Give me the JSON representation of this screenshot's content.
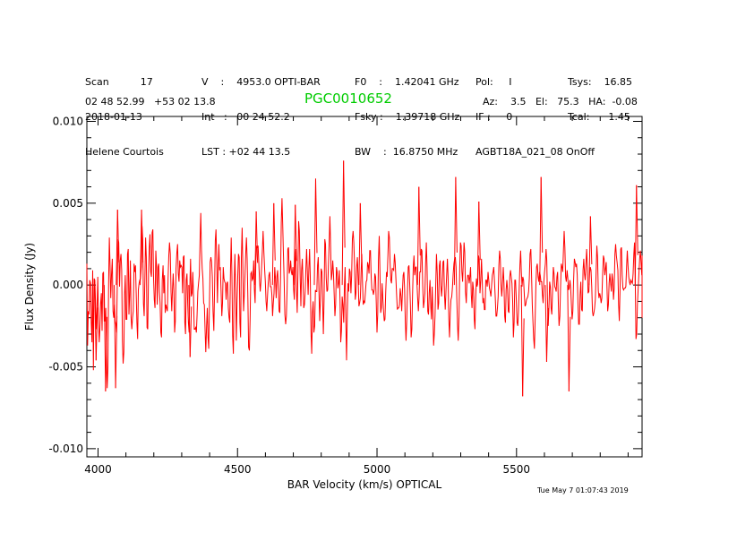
{
  "header": {
    "col1": [
      "Scan          17",
      "2018-01-13",
      "Helene Courtois"
    ],
    "col2": [
      "V    :    4953.0 OPTI-BAR",
      "Int   :   00 24 52.2",
      "LST : +02 44 13.5"
    ],
    "col3": [
      "F0    :    1.42041 GHz",
      "Fsky :    1.39718 GHz",
      "BW    :  16.8750 MHz"
    ],
    "col4": [
      "Pol:     I",
      "IF :     0",
      "AGBT18A_021_08 OnOff"
    ],
    "col5": [
      "Tsys:    16.85",
      "Tcal:      1.45",
      ""
    ],
    "coords": "02 48 52.99   +53 02 13.8",
    "object": "PGC0010652",
    "pointing": "Az:    3.5   El:   75.3   HA:  -0.08",
    "timestamp": "Tue May  7 01:07:43 2019"
  },
  "chart_data": {
    "type": "line",
    "xlabel": "BAR Velocity (km/s) OPTICAL",
    "ylabel": "Flux Density (Jy)",
    "xlim": [
      3960,
      5950
    ],
    "ylim": [
      -0.0105,
      0.0103
    ],
    "xticks": [
      4000,
      4500,
      5000,
      5500
    ],
    "xtick_labels": [
      "4000",
      "4500",
      "5000",
      "5500"
    ],
    "yticks": [
      0.01,
      0.005,
      0.0,
      -0.005,
      -0.01
    ],
    "ytick_labels": [
      "0.010",
      "0.005",
      "0.000",
      "-0.005",
      "-0.010"
    ],
    "series": [
      {
        "color": "#ff0000",
        "x_start": 3960,
        "x_step": 2.6,
        "values": [
          0.0013,
          -0.0037,
          -0.0016,
          -0.0018,
          0.0003,
          0.0001,
          -0.0023,
          -0.0035,
          0.0009,
          -0.0052,
          0.0004,
          0.0003,
          -0.0011,
          -0.0027,
          -0.0016,
          0.0005,
          -0.0023,
          -0.0035,
          -0.0026,
          -0.0011,
          -0.0005,
          -0.0028,
          0.0007,
          0.0008,
          -0.0022,
          -0.0022,
          -0.0014,
          -0.0043,
          -0.0063,
          -0.0051,
          0.0001,
          0.0029,
          0.0012,
          -0.0008,
          0.0006,
          0.0016,
          -0.0016,
          -0.002,
          -0.0012,
          -0.0022,
          -0.0024,
          -0.0029,
          0.0002,
          0.0028,
          0.0026,
          -0.0001,
          0.0015,
          0.0019,
          0.0009,
          -0.0034,
          -0.0048,
          -0.0041,
          -0.0006,
          0.0006,
          -0.0021,
          -0.0021,
          0.0019,
          0.0022,
          -0.0018,
          -0.0006,
          0.0015,
          -0.002,
          -0.0027,
          -0.002,
          -0.0016,
          0.0013,
          0.0008,
          0.0012,
          -0.0005,
          -0.0023,
          -0.0033,
          -0.0003,
          0.0001,
          0.0003,
          0.0004,
          0.0011,
          0.0036,
          0.0028,
          -0.0011,
          -0.0019,
          0.0003,
          0.0029,
          0.0017,
          -0.0026,
          -0.0027,
          0.0008,
          0.0023,
          0.0031,
          0.0008,
          0.0005,
          0.0032,
          0.0034,
          0.0004,
          -0.0009,
          -0.0014,
          0.0021,
          0.0011,
          -0.0012,
          0.0011,
          0.0013,
          -0.0004,
          -0.0011,
          -0.0029,
          -0.0032,
          0.0003,
          0.0012,
          -0.0005,
          0.0006,
          -0.0017,
          -0.0012,
          -0.0014,
          -0.0016,
          0.0004,
          0.0018,
          0.0026,
          0.0019,
          -0.0004,
          -0.0016,
          -0.0003,
          0.0007,
          -0.0004,
          -0.0029,
          -0.0022,
          0.001,
          0.0019,
          0.0025,
          0.0007,
          0.0002,
          0.0015,
          0.0011,
          0.0012,
          0.0011,
          -0.0005,
          0.0017,
          0.0018,
          -0.0023,
          -0.003,
          0.0003,
          0.0007,
          -0.0011,
          -0.0023,
          -0.0029,
          -0.0001,
          0.0016,
          -0.0007,
          -0.0005,
          0.0008,
          -0.0007,
          -0.0027,
          -0.0027,
          -0.0026,
          -0.0029,
          -0.0018,
          -0.0004,
          0.0001,
          0.0006,
          0.0027,
          0.0044,
          0.0021,
          0.001,
          0.0004,
          -0.0011,
          -0.0012,
          -0.0027,
          -0.0041,
          -0.0025,
          -0.0014,
          -0.0032,
          -0.0039,
          -0.0011,
          0.0014,
          0.0017,
          0.0014,
          0.0005,
          -0.0016,
          -0.0028,
          -0.0003,
          0.0027,
          0.0034,
          0.0015,
          -0.0011,
          0.001,
          0.0025,
          0.0009,
          0.0011,
          -0.0004,
          -0.0019,
          -0.0011,
          0.0011,
          0.0004,
          0.0002,
          0.0001,
          -0.0009,
          0.0001,
          0.0002,
          -0.0014,
          -0.002,
          -0.0023,
          0.0009,
          0.0029,
          0.0005,
          -0.0031,
          -0.0042,
          -0.0003,
          0.0019,
          -0.0002,
          -0.0034,
          -0.0011,
          0.0005,
          0.0019,
          0.0017,
          -0.0023,
          -0.0032,
          0.0016,
          0.0035,
          0.0011,
          -0.0016,
          -0.0006,
          0.0006,
          0.0019,
          0.0029,
          0.0016,
          -0.0008,
          -0.0038,
          -0.004,
          -0.0021,
          0.0007,
          0.0008,
          0.0003,
          0.0004,
          0.0015,
          -0.0003,
          -0.0011,
          0.0015,
          0.0024,
          0.0023,
          0.0024,
          0.0014,
          0.0003,
          -0.0004,
          0.0002,
          0.0012,
          0.0021,
          0.0033,
          0.002,
          0.001,
          0.0002,
          -0.001,
          -0.0016,
          -0.0007,
          0.0001,
          0.0006,
          0.0008,
          -0.0001,
          -0.0001,
          -0.0006,
          -0.0019,
          -0.0011,
          -0.0005,
          0.0011,
          0.0004,
          -0.0008,
          0.0005,
          0.0009,
          -0.0003,
          -0.0016,
          -0.0017,
          0.0005,
          0.0038,
          0.0053,
          0.0037,
          0.0019,
          0.0003,
          -0.0018,
          -0.0024,
          -0.0019,
          -0.0003,
          0.0022,
          0.0023,
          0.0007,
          0.0009,
          0.0015,
          0.0008,
          0.0006,
          0.0011,
          -0.0003,
          -0.0009,
          0.0016,
          0.0022,
          -0.0003,
          -0.0017,
          0.0007,
          0.0039,
          0.0033,
          0.0005,
          -0.0013,
          0.0009,
          0.0016,
          0.0001,
          -0.0014,
          -0.0012,
          -0.0004,
          0.001,
          0.0022,
          0.0007,
          -0.0006,
          0.001,
          0.0022,
          0.0005,
          -0.0029,
          -0.0042,
          -0.0017,
          -0.001,
          -0.0029,
          -0.0025,
          -0.0003,
          -0.0004,
          -0.0004,
          0.0012,
          0.0017,
          -0.0004,
          -0.0022,
          -0.0009,
          0.001,
          0.0008,
          -0.001,
          -0.003,
          -0.0009,
          0.0028,
          0.0025,
          0.0004,
          -0.0004,
          -0.0003,
          0.0011,
          0.0026,
          0.0042,
          0.0024,
          0.0003,
          0.0007,
          0.0015,
          0.0007,
          -0.0006,
          -0.0019,
          -0.0012,
          0.0011,
          0.0008,
          -0.0002,
          0.0001,
          0.0009,
          -0.0009,
          -0.0035,
          -0.0028,
          -0.0007,
          -0.0012,
          -0.0023,
          -0.0001,
          0.0011,
          -0.0023,
          -0.0046,
          -0.0019,
          0.0001,
          -0.0004,
          0.001,
          0.0008,
          -0.0005,
          0.0006,
          0.0028,
          0.0033,
          0.0026,
          0.0013,
          -0.0009,
          -0.0005,
          0.0011,
          0.0017,
          0.0003,
          -0.0013,
          -0.0011,
          -0.0008,
          0.0007,
          0.0019,
          0.0002,
          -0.0012,
          -0.001,
          -0.0011,
          -0.0004,
          0.0002,
          0.0003,
          0.0014,
          0.0012,
          0.0007,
          0.0021,
          0.0021,
          0.0005,
          -0.0003,
          -0.0003,
          -0.0006,
          -0.0003,
          0.0007,
          0.0005,
          -0.0011,
          -0.0029,
          -0.0018,
          0.0015,
          0.003,
          0.0008,
          -0.0017,
          -0.0014,
          0.0001,
          -0.0008,
          -0.0016,
          -0.0022,
          -0.0021,
          -0.0005,
          0.0008,
          0.0005,
          0.0018,
          0.0033,
          0.0029,
          0.0014,
          0.0003,
          0.0001,
          0.001,
          0.001,
          0.0009,
          0.0019,
          0.0014,
          0.0004,
          -0.0006,
          -0.0015,
          -0.0014,
          -0.0014,
          -0.0012,
          -0.0002,
          -0.0007,
          -0.0016,
          -0.0004,
          0.0006,
          0.0008,
          -0.0002,
          -0.0022,
          -0.0034,
          -0.0022,
          -0.0004,
          0.0011,
          0.0012,
          0.0001,
          -0.0012,
          -0.0032,
          -0.0027,
          -0.0006,
          0.0011,
          0.0018,
          0.0006,
          0.0011,
          0.0011,
          0.0001,
          -0.0008,
          -0.0016,
          -0.0007,
          0.0008,
          0.0008,
          0.0022,
          0.0021,
          -0.0001,
          -0.0014,
          -0.001,
          -0.0005,
          0.0013,
          0.0026,
          0.0011,
          -0.0016,
          -0.0018,
          -0.0005,
          0.0003,
          -0.0013,
          -0.0021,
          -0.0001,
          -0.0016,
          -0.0037,
          -0.003,
          -0.0019,
          0.0,
          0.0019,
          0.0007,
          -0.0015,
          -0.0011,
          0.0012,
          0.0015,
          0.0,
          -0.0007,
          0.0,
          0.0014,
          0.0015,
          -0.0006,
          -0.0015,
          -0.0004,
          0.0006,
          0.0016,
          0.0005,
          -0.0021,
          -0.0032,
          -0.0017,
          -0.0009,
          -0.0007,
          -0.0001,
          0.0007,
          0.0013,
          0.0016,
          0.0017,
          0.0011,
          -0.0008,
          -0.0024,
          -0.0034,
          -0.0019,
          0.0011,
          0.0026,
          0.0024,
          0.0008,
          0.0002,
          0.0014,
          0.0026,
          0.002,
          -0.0004,
          -0.0011,
          0.0002,
          0.0006,
          0.0006,
          0.0001,
          0.0005,
          0.0011,
          -0.0006,
          -0.0014,
          0.0002,
          -0.0003,
          -0.0021,
          -0.0027,
          -0.0008,
          0.0004,
          -0.0001,
          0.0003,
          0.0018,
          0.0015,
          -0.0005,
          0.0003,
          0.0016,
          0.0003,
          -0.0011,
          -0.0008,
          -0.0015,
          -0.0015,
          0.0003,
          0.0003,
          -0.0001,
          0.0008,
          0.0003,
          -0.0002,
          -0.0004,
          -0.0007,
          0.0,
          0.0006,
          0.0008,
          0.0011,
          0.0002,
          -0.0008,
          -0.0019,
          -0.0019,
          -0.0014,
          -0.0007,
          0.0012,
          0.0021,
          0.0016,
          0.0,
          -0.0007,
          0.0001,
          0.0011,
          0.0001,
          -0.0019,
          -0.0023,
          -0.0003,
          0.0003,
          -0.0003,
          -0.0016,
          -0.0017,
          0.0005,
          0.0009,
          0.0005,
          0.0001,
          -0.001,
          -0.0032,
          -0.0023,
          0.0003,
          0.0003,
          -0.0008,
          -0.0023,
          -0.0025,
          -0.0016,
          -0.0002,
          0.0012,
          0.0021,
          0.0008,
          -0.0001,
          0.0005,
          0.0003,
          -0.0006,
          -0.0013,
          -0.0012,
          -0.0009,
          -0.0008,
          -0.0007,
          -0.0004,
          0.0004,
          0.0019,
          0.0022,
          0.0006,
          -0.0012,
          -0.0023,
          -0.0033,
          -0.0039,
          -0.0021,
          -0.0001,
          0.0011,
          0.0013,
          0.0005,
          0.0002,
          0.0008,
          0.0006,
          0.0002,
          0.0002,
          -0.0006,
          -0.0011,
          0.0002,
          0.0008,
          0.0013,
          0.0022,
          0.0015,
          -0.0009,
          -0.0025,
          -0.0014,
          0.0002,
          -0.0001,
          -0.0014,
          -0.0018,
          -0.0003,
          0.0011,
          0.0007,
          -0.0001,
          -0.0002,
          -0.0004,
          0.0005,
          0.0008,
          -0.0011,
          -0.0025,
          -0.0019,
          -0.0001,
          0.0013,
          0.0011,
          0.0008,
          0.0021,
          0.0033,
          0.0023,
          0.0005,
          0.0002,
          0.0009,
          0.0004,
          -0.0003,
          -0.0002,
          0.0003,
          -0.0002,
          -0.0012,
          -0.0021,
          -0.0016,
          0.0002,
          0.0016,
          0.0014,
          0.0011,
          0.0013,
          0.0006,
          -0.0011,
          -0.0024,
          -0.0024,
          -0.0006,
          0.0002,
          -0.0015,
          -0.0016,
          0.0009,
          0.0016,
          0.0007,
          0.0003,
          0.0012,
          0.0022,
          0.0012,
          -0.0005,
          -0.0004,
          0.0007,
          0.0011,
          0.0009,
          -0.0001,
          -0.0016,
          -0.0019,
          -0.0017,
          -0.0014,
          -0.0009,
          0.0008,
          0.0024,
          0.0017,
          -0.0003,
          -0.0008,
          -0.0005,
          -0.0007,
          -0.0011,
          -0.0008,
          0.0005,
          0.0018,
          0.0016,
          0.0006,
          0.001,
          0.0014,
          -0.0001,
          -0.0016,
          -0.0012,
          0.0001,
          0.0007,
          0.0001,
          -0.0004,
          0.0007,
          0.0003,
          -0.0009,
          -0.0002,
          0.0019,
          0.0025,
          0.0018,
          0.0014,
          0.0009,
          -0.0012,
          -0.0022,
          -0.0003,
          0.0022,
          0.0023,
          0.0006,
          -0.0002,
          -0.0003,
          -0.0002,
          -0.0002,
          -0.0001,
          0.0011,
          0.0021,
          0.0012,
          0.0005,
          0.0002,
          0.0,
          0.0003,
          0.0002,
          0.0001,
          0.0007,
          0.0019,
          0.0026,
          0.0002,
          -0.0033,
          -0.003,
          -0.0012,
          -0.0003,
          0.0006,
          0.0016,
          0.0021,
          0.0014,
          0.0006,
          0.0013,
          0.0018,
          0.0011,
          -0.0006,
          -0.002,
          -0.0014,
          0.0003,
          0.001,
          0.0003,
          -0.0002,
          0.0009,
          0.0013,
          0.0003,
          -0.0003,
          0.0003
        ]
      }
    ],
    "highlights": [
      {
        "x": 3993,
        "y": -0.0046
      },
      {
        "x": 4027,
        "y": -0.0065
      },
      {
        "x": 4063,
        "y": -0.0063
      },
      {
        "x": 4070,
        "y": 0.0046
      },
      {
        "x": 4156,
        "y": 0.0046
      },
      {
        "x": 4330,
        "y": -0.0044
      },
      {
        "x": 4567,
        "y": 0.0045
      },
      {
        "x": 4630,
        "y": 0.005
      },
      {
        "x": 4707,
        "y": 0.0049
      },
      {
        "x": 4780,
        "y": 0.0065
      },
      {
        "x": 4880,
        "y": 0.0076
      },
      {
        "x": 4940,
        "y": 0.005
      },
      {
        "x": 5150,
        "y": 0.006
      },
      {
        "x": 5282,
        "y": 0.0066
      },
      {
        "x": 5365,
        "y": 0.0051
      },
      {
        "x": 5522,
        "y": -0.0068
      },
      {
        "x": 5588,
        "y": 0.0066
      },
      {
        "x": 5608,
        "y": -0.0047
      },
      {
        "x": 5688,
        "y": -0.0065
      },
      {
        "x": 5765,
        "y": 0.0042
      },
      {
        "x": 5930,
        "y": 0.0061
      }
    ]
  }
}
